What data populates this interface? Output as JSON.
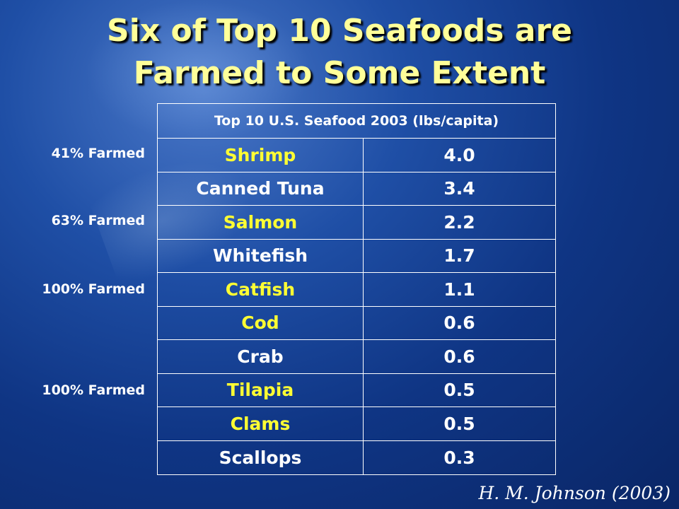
{
  "title": {
    "line1": "Six of Top 10 Seafoods are",
    "line2": "Farmed to Some Extent"
  },
  "table": {
    "header": "Top 10 U.S. Seafood 2003 (lbs/capita)",
    "rows": [
      {
        "name": "Shrimp",
        "value": "4.0",
        "farmed": true
      },
      {
        "name": "Canned Tuna",
        "value": "3.4",
        "farmed": false
      },
      {
        "name": "Salmon",
        "value": "2.2",
        "farmed": true
      },
      {
        "name": "Whitefish",
        "value": "1.7",
        "farmed": false
      },
      {
        "name": "Catfish",
        "value": "1.1",
        "farmed": true
      },
      {
        "name": "Cod",
        "value": "0.6",
        "farmed": true
      },
      {
        "name": "Crab",
        "value": "0.6",
        "farmed": false
      },
      {
        "name": "Tilapia",
        "value": "0.5",
        "farmed": true
      },
      {
        "name": "Clams",
        "value": "0.5",
        "farmed": true
      },
      {
        "name": "Scallops",
        "value": "0.3",
        "farmed": false
      }
    ]
  },
  "farm_labels": {
    "shrimp": "41% Farmed",
    "salmon": "63% Farmed",
    "catfish": "100% Farmed",
    "tilapia": "100% Farmed"
  },
  "citation": "H. M. Johnson (2003)",
  "colors": {
    "title": "#ffff99",
    "farmed_text": "#ffff33",
    "normal_text": "#ffffff",
    "background": "#0f3584"
  }
}
